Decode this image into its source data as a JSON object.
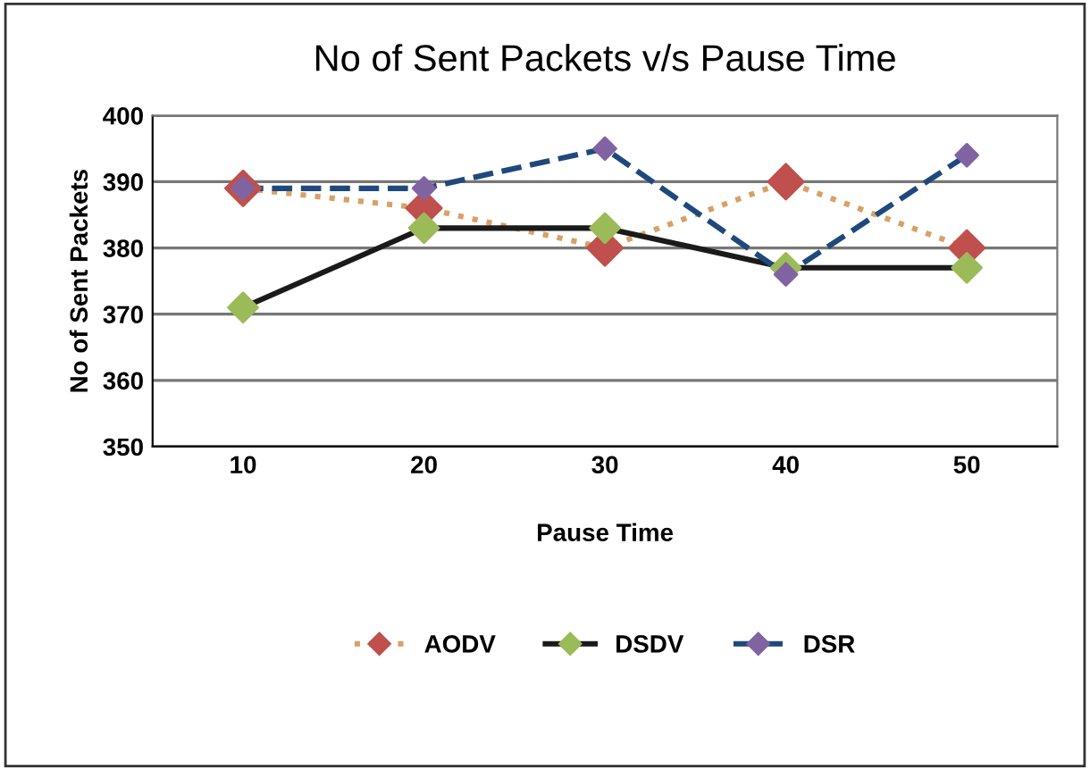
{
  "chart_data": {
    "type": "line",
    "title": "No of Sent Packets v/s Pause Time",
    "xlabel": "Pause Time",
    "ylabel": "No of Sent Packets",
    "categories": [
      "10",
      "20",
      "30",
      "40",
      "50"
    ],
    "series": [
      {
        "name": "AODV",
        "color": "#d9a066",
        "colors": [
          "#c0504d",
          "#c0504d",
          "#c0504d",
          "#c0504d",
          "#c0504d"
        ],
        "line_style": "dotted",
        "values": [
          389,
          386,
          380,
          390,
          380
        ]
      },
      {
        "name": "DSDV",
        "color": "#1a1a1a",
        "colors": [
          "#9bbb59",
          "#9bbb59",
          "#9bbb59",
          "#9bbb59",
          "#9bbb59"
        ],
        "line_style": "solid",
        "values": [
          371,
          383,
          383,
          377,
          377
        ]
      },
      {
        "name": "DSR",
        "color": "#1f497d",
        "colors": [
          "#8064a2",
          "#8064a2",
          "#8064a2",
          "#8064a2",
          "#8064a2"
        ],
        "line_style": "dashed",
        "values": [
          389,
          389,
          395,
          376,
          394
        ]
      }
    ],
    "marker": "diamond",
    "ylim": [
      350,
      400
    ],
    "yticks": [
      350,
      360,
      370,
      380,
      390,
      400
    ],
    "grid": "y",
    "legend": "bottom"
  }
}
